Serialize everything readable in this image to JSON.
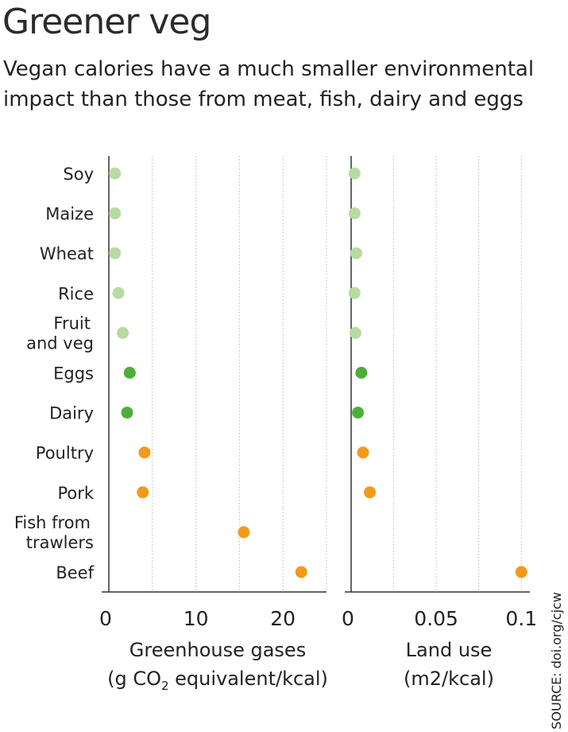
{
  "title": "Greener veg",
  "subtitle": [
    "Vegan calories have a much smaller environmental",
    "impact than those from meat, fish, dairy and eggs"
  ],
  "source": "SOURCE: doi.org/cjcw",
  "colors": {
    "vegan": "#b7dba0",
    "animal": "#4daf3a",
    "meat": "#f39a1c",
    "axis": "#333333",
    "grid": "#bbbbbb"
  },
  "chart_data": {
    "type": "scatter",
    "categories": [
      [
        "Soy"
      ],
      [
        "Maize"
      ],
      [
        "Wheat"
      ],
      [
        "Rice"
      ],
      [
        "Fruit",
        "and veg"
      ],
      [
        "Eggs"
      ],
      [
        "Dairy"
      ],
      [
        "Poultry"
      ],
      [
        "Pork"
      ],
      [
        "Fish from",
        "trawlers"
      ],
      [
        "Beef"
      ]
    ],
    "groups": [
      "vegan",
      "vegan",
      "vegan",
      "vegan",
      "vegan",
      "animal",
      "animal",
      "meat",
      "meat",
      "meat",
      "meat"
    ],
    "panels": [
      {
        "id": "ghg",
        "xlabel_line1": "Greenhouse gases",
        "xlabel_pre": "(g CO",
        "xlabel_sub": "2",
        "xlabel_post": " equivalent/kcal)",
        "xlim": [
          0,
          25
        ],
        "ticks": [
          0,
          10,
          20
        ],
        "tick_labels": [
          "0",
          "10",
          "20"
        ],
        "grid": [
          5,
          10,
          15,
          20,
          25
        ],
        "values": [
          0.7,
          0.7,
          0.7,
          1.1,
          1.6,
          2.4,
          2.1,
          4.1,
          3.9,
          15.5,
          22.1
        ]
      },
      {
        "id": "land",
        "xlabel_line1": "Land use",
        "xlabel_line2": "(m2/kcal)",
        "xlim": [
          0,
          0.105
        ],
        "ticks": [
          0,
          0.05,
          0.1
        ],
        "tick_labels": [
          "0",
          "0.05",
          "0.1"
        ],
        "grid": [
          0.025,
          0.05,
          0.075,
          0.1
        ],
        "values": [
          0.002,
          0.002,
          0.003,
          0.002,
          0.0025,
          0.006,
          0.004,
          0.007,
          0.011,
          null,
          0.1
        ]
      }
    ]
  }
}
